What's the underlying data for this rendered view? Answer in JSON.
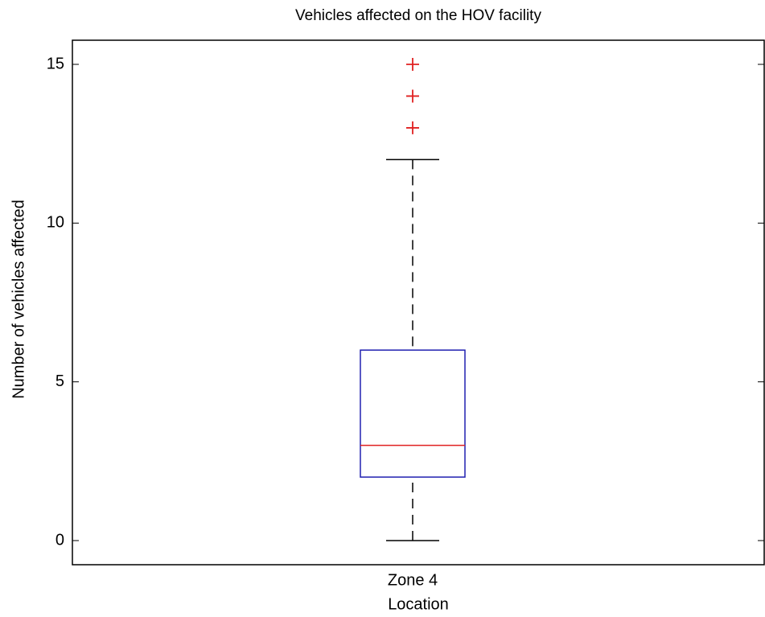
{
  "chart_data": {
    "type": "box",
    "title": "Vehicles affected on the HOV facility",
    "x_label": "Location",
    "y_label": "Number of vehicles affected",
    "categories": [
      "Zone 4"
    ],
    "boxes": [
      {
        "min": 0,
        "q1": 2,
        "median": 3,
        "q3": 6,
        "max": 12,
        "outliers": [
          13,
          14,
          15
        ]
      }
    ],
    "box_color": "#2020b0",
    "median_color": "#e02020",
    "whisker_color": "#000000",
    "outlier_color": "#e02020",
    "ylim": [
      -0.76,
      15.76
    ],
    "yticks": [
      0,
      5,
      10,
      15
    ]
  }
}
